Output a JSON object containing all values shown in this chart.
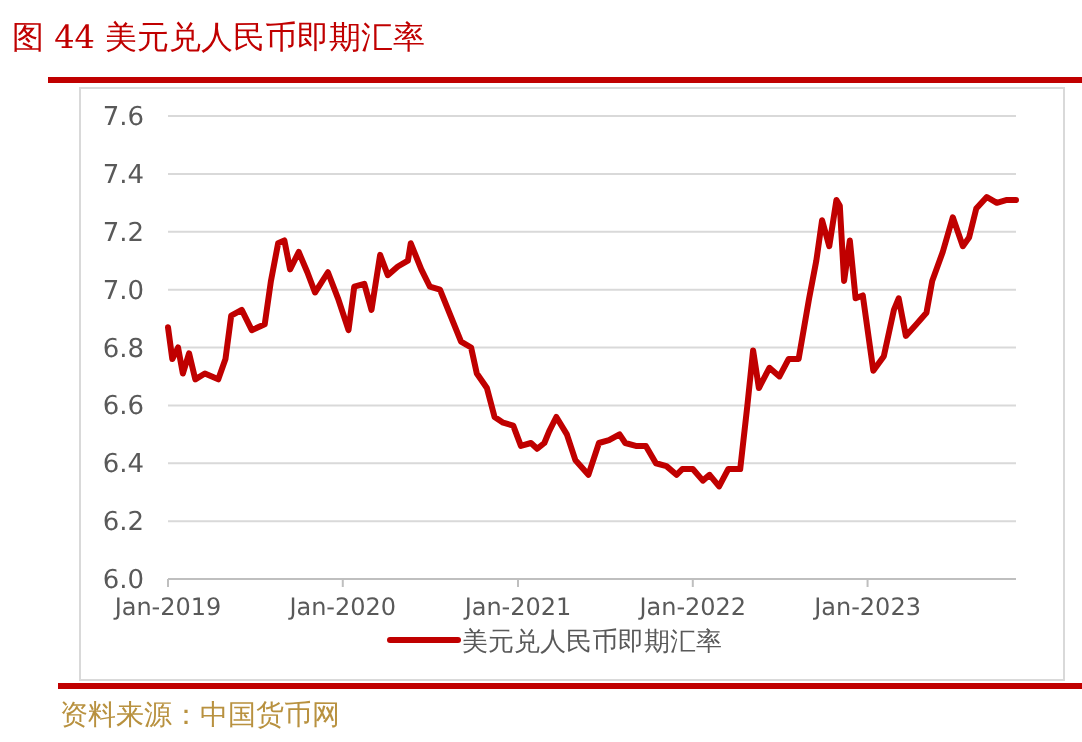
{
  "chart_data": {
    "type": "line",
    "title": "图 44    美元兑人民币即期汇率",
    "x": [
      "2019-01-01",
      "2019-01-10",
      "2019-01-22",
      "2019-02-01",
      "2019-02-14",
      "2019-02-27",
      "2019-03-19",
      "2019-04-16",
      "2019-05-01",
      "2019-05-13",
      "2019-06-04",
      "2019-06-25",
      "2019-07-22",
      "2019-08-04",
      "2019-08-19",
      "2019-09-01",
      "2019-09-13",
      "2019-10-01",
      "2019-10-19",
      "2019-11-04",
      "2019-12-01",
      "2019-12-22",
      "2020-01-13",
      "2020-01-25",
      "2020-02-15",
      "2020-03-01",
      "2020-03-19",
      "2020-04-04",
      "2020-04-25",
      "2020-05-16",
      "2020-05-22",
      "2020-06-13",
      "2020-07-01",
      "2020-07-22",
      "2020-08-13",
      "2020-09-04",
      "2020-09-25",
      "2020-10-07",
      "2020-10-28",
      "2020-11-13",
      "2020-12-01",
      "2020-12-22",
      "2021-01-07",
      "2021-01-28",
      "2021-02-10",
      "2021-02-25",
      "2021-03-07",
      "2021-03-22",
      "2021-04-13",
      "2021-05-01",
      "2021-05-28",
      "2021-06-19",
      "2021-07-10",
      "2021-08-01",
      "2021-08-13",
      "2021-09-04",
      "2021-09-25",
      "2021-10-16",
      "2021-11-07",
      "2021-11-28",
      "2021-12-10",
      "2022-01-01",
      "2022-01-22",
      "2022-02-05",
      "2022-02-25",
      "2022-03-16",
      "2022-04-10",
      "2022-04-25",
      "2022-05-07",
      "2022-05-19",
      "2022-06-10",
      "2022-07-01",
      "2022-07-20",
      "2022-08-10",
      "2022-09-01",
      "2022-09-16",
      "2022-09-28",
      "2022-10-13",
      "2022-10-28",
      "2022-11-04",
      "2022-11-13",
      "2022-11-25",
      "2022-12-07",
      "2022-12-22",
      "2023-01-13",
      "2023-02-04",
      "2023-02-25",
      "2023-03-07",
      "2023-03-22",
      "2023-04-13",
      "2023-05-04",
      "2023-05-16",
      "2023-06-07",
      "2023-06-28",
      "2023-07-19",
      "2023-08-01",
      "2023-08-16",
      "2023-09-07",
      "2023-09-28",
      "2023-10-19",
      "2023-11-07"
    ],
    "series": [
      {
        "name": "美元兑人民币即期汇率",
        "color": "#c00000",
        "values": [
          6.87,
          6.76,
          6.8,
          6.71,
          6.78,
          6.69,
          6.71,
          6.69,
          6.76,
          6.91,
          6.93,
          6.86,
          6.88,
          7.03,
          7.16,
          7.17,
          7.07,
          7.13,
          7.06,
          6.99,
          7.06,
          6.97,
          6.86,
          7.01,
          7.02,
          6.93,
          7.12,
          7.05,
          7.08,
          7.1,
          7.16,
          7.07,
          7.01,
          7.0,
          6.91,
          6.82,
          6.8,
          6.71,
          6.66,
          6.56,
          6.54,
          6.53,
          6.46,
          6.47,
          6.45,
          6.47,
          6.51,
          6.56,
          6.5,
          6.41,
          6.36,
          6.47,
          6.48,
          6.5,
          6.47,
          6.46,
          6.46,
          6.4,
          6.39,
          6.36,
          6.38,
          6.38,
          6.34,
          6.36,
          6.32,
          6.38,
          6.38,
          6.6,
          6.79,
          6.66,
          6.73,
          6.7,
          6.76,
          6.76,
          6.97,
          7.1,
          7.24,
          7.15,
          7.31,
          7.29,
          7.03,
          7.17,
          6.97,
          6.98,
          6.72,
          6.77,
          6.93,
          6.97,
          6.84,
          6.88,
          6.92,
          7.03,
          7.13,
          7.25,
          7.15,
          7.18,
          7.28,
          7.32,
          7.3,
          7.31,
          7.31
        ]
      }
    ],
    "xlim": [
      "2019-01-01",
      "2023-11-07"
    ],
    "xticks": [
      {
        "value": "2019-01-01",
        "label": "Jan-2019"
      },
      {
        "value": "2020-01-01",
        "label": "Jan-2020"
      },
      {
        "value": "2021-01-01",
        "label": "Jan-2021"
      },
      {
        "value": "2022-01-01",
        "label": "Jan-2022"
      },
      {
        "value": "2023-01-01",
        "label": "Jan-2023"
      }
    ],
    "ylim": [
      6.0,
      7.6
    ],
    "yticks": [
      {
        "value": 6.0,
        "label": "6.0"
      },
      {
        "value": 6.2,
        "label": "6.2"
      },
      {
        "value": 6.4,
        "label": "6.4"
      },
      {
        "value": 6.6,
        "label": "6.6"
      },
      {
        "value": 6.8,
        "label": "6.8"
      },
      {
        "value": 7.0,
        "label": "7.0"
      },
      {
        "value": 7.2,
        "label": "7.2"
      },
      {
        "value": 7.4,
        "label": "7.4"
      },
      {
        "value": 7.6,
        "label": "7.6"
      }
    ],
    "grid": "y",
    "legend": "bottom",
    "marker": "none",
    "line_style": "solid",
    "annotations": [
      "资料来源：中国货币网"
    ]
  }
}
